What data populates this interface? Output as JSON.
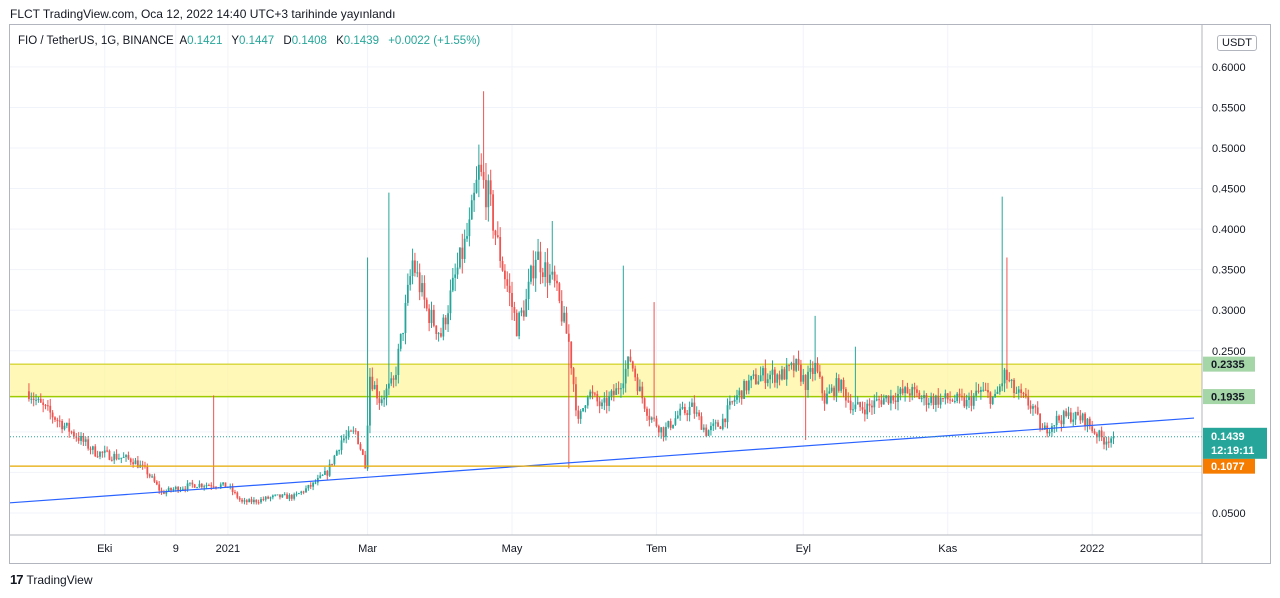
{
  "header": {
    "published": "FLCT TradingView.com, Oca 12, 2022 14:40 UTC+3 tarihinde yayınlandı"
  },
  "legend": {
    "symbol": "FIO / TetherUS, 1G, BINANCE",
    "open_label": "A",
    "open": "0.1421",
    "high_label": "Y",
    "high": "0.1447",
    "low_label": "D",
    "low": "0.1408",
    "close_label": "K",
    "close": "0.1439",
    "change": "+0.0022 (+1.55%)"
  },
  "unit_badge": "USDT",
  "footer": {
    "brand": "TradingView",
    "logo": "tradingview-logo-icon"
  },
  "colors": {
    "up": "#26a69a",
    "down": "#ef5350",
    "trendline": "#2962ff",
    "zone_fill": "#fff59d",
    "zone_line": "#c8c800",
    "support_line": "#e6a800",
    "price_badge": "#26a69a",
    "support_badge": "#f57c00",
    "zone_badge": "#a5d6a7"
  },
  "chart_data": {
    "type": "candlestick",
    "ylim": [
      0.02,
      0.65
    ],
    "yticks": [
      "0.6000",
      "0.5500",
      "0.5000",
      "0.4500",
      "0.4000",
      "0.3500",
      "0.3000",
      "0.2500",
      "0.0500"
    ],
    "xticks": [
      {
        "label": "Eki",
        "day": 40
      },
      {
        "label": "9",
        "day": 70
      },
      {
        "label": "2021",
        "day": 92
      },
      {
        "label": "Mar",
        "day": 151
      },
      {
        "label": "May",
        "day": 212
      },
      {
        "label": "Tem",
        "day": 273
      },
      {
        "label": "Eyl",
        "day": 335
      },
      {
        "label": "Kas",
        "day": 396
      },
      {
        "label": "2022",
        "day": 457
      }
    ],
    "x_range_days": [
      0,
      500
    ],
    "price_labels": {
      "last_price": "0.1439",
      "countdown": "12:19:11",
      "zone_top": "0.2335",
      "zone_bottom": "0.1935",
      "support": "0.1077"
    },
    "levels": {
      "zone_top": 0.2335,
      "zone_bottom": 0.1935,
      "support": 0.1077
    },
    "trendline": [
      {
        "day": 0,
        "price": 0.0625
      },
      {
        "day": 500,
        "price": 0.167
      }
    ],
    "keypoints": [
      {
        "day": 8,
        "price": 0.2
      },
      {
        "day": 12,
        "price": 0.185
      },
      {
        "day": 18,
        "price": 0.17
      },
      {
        "day": 24,
        "price": 0.155
      },
      {
        "day": 30,
        "price": 0.14
      },
      {
        "day": 36,
        "price": 0.125
      },
      {
        "day": 44,
        "price": 0.12
      },
      {
        "day": 52,
        "price": 0.115
      },
      {
        "day": 58,
        "price": 0.1
      },
      {
        "day": 64,
        "price": 0.075
      },
      {
        "day": 70,
        "price": 0.08
      },
      {
        "day": 78,
        "price": 0.085
      },
      {
        "day": 86,
        "price": 0.085
      },
      {
        "day": 92,
        "price": 0.083
      },
      {
        "day": 98,
        "price": 0.063
      },
      {
        "day": 104,
        "price": 0.065
      },
      {
        "day": 112,
        "price": 0.07
      },
      {
        "day": 120,
        "price": 0.07
      },
      {
        "day": 128,
        "price": 0.085
      },
      {
        "day": 134,
        "price": 0.1
      },
      {
        "day": 140,
        "price": 0.14
      },
      {
        "day": 146,
        "price": 0.15
      },
      {
        "day": 150,
        "price": 0.11
      },
      {
        "day": 152,
        "price": 0.22
      },
      {
        "day": 156,
        "price": 0.19
      },
      {
        "day": 162,
        "price": 0.21
      },
      {
        "day": 166,
        "price": 0.28
      },
      {
        "day": 170,
        "price": 0.36
      },
      {
        "day": 176,
        "price": 0.3
      },
      {
        "day": 182,
        "price": 0.27
      },
      {
        "day": 188,
        "price": 0.34
      },
      {
        "day": 194,
        "price": 0.4
      },
      {
        "day": 198,
        "price": 0.47
      },
      {
        "day": 202,
        "price": 0.44
      },
      {
        "day": 206,
        "price": 0.38
      },
      {
        "day": 210,
        "price": 0.33
      },
      {
        "day": 214,
        "price": 0.28
      },
      {
        "day": 218,
        "price": 0.31
      },
      {
        "day": 222,
        "price": 0.37
      },
      {
        "day": 226,
        "price": 0.35
      },
      {
        "day": 230,
        "price": 0.33
      },
      {
        "day": 236,
        "price": 0.26
      },
      {
        "day": 240,
        "price": 0.16
      },
      {
        "day": 244,
        "price": 0.2
      },
      {
        "day": 250,
        "price": 0.18
      },
      {
        "day": 256,
        "price": 0.2
      },
      {
        "day": 262,
        "price": 0.24
      },
      {
        "day": 266,
        "price": 0.2
      },
      {
        "day": 270,
        "price": 0.17
      },
      {
        "day": 276,
        "price": 0.15
      },
      {
        "day": 282,
        "price": 0.17
      },
      {
        "day": 288,
        "price": 0.18
      },
      {
        "day": 294,
        "price": 0.15
      },
      {
        "day": 300,
        "price": 0.16
      },
      {
        "day": 306,
        "price": 0.19
      },
      {
        "day": 312,
        "price": 0.21
      },
      {
        "day": 318,
        "price": 0.22
      },
      {
        "day": 326,
        "price": 0.22
      },
      {
        "day": 332,
        "price": 0.23
      },
      {
        "day": 336,
        "price": 0.21
      },
      {
        "day": 340,
        "price": 0.23
      },
      {
        "day": 344,
        "price": 0.19
      },
      {
        "day": 350,
        "price": 0.21
      },
      {
        "day": 356,
        "price": 0.18
      },
      {
        "day": 362,
        "price": 0.18
      },
      {
        "day": 368,
        "price": 0.19
      },
      {
        "day": 374,
        "price": 0.195
      },
      {
        "day": 380,
        "price": 0.2
      },
      {
        "day": 386,
        "price": 0.19
      },
      {
        "day": 392,
        "price": 0.19
      },
      {
        "day": 398,
        "price": 0.19
      },
      {
        "day": 404,
        "price": 0.185
      },
      {
        "day": 410,
        "price": 0.2
      },
      {
        "day": 416,
        "price": 0.19
      },
      {
        "day": 420,
        "price": 0.22
      },
      {
        "day": 424,
        "price": 0.2
      },
      {
        "day": 428,
        "price": 0.19
      },
      {
        "day": 432,
        "price": 0.18
      },
      {
        "day": 436,
        "price": 0.15
      },
      {
        "day": 442,
        "price": 0.165
      },
      {
        "day": 448,
        "price": 0.17
      },
      {
        "day": 454,
        "price": 0.165
      },
      {
        "day": 458,
        "price": 0.15
      },
      {
        "day": 462,
        "price": 0.14
      },
      {
        "day": 466,
        "price": 0.1439
      }
    ],
    "spikes": [
      {
        "day": 7,
        "high": 0.22
      },
      {
        "day": 86,
        "high": 0.195
      },
      {
        "day": 151,
        "high": 0.365
      },
      {
        "day": 160,
        "high": 0.445
      },
      {
        "day": 200,
        "high": 0.57
      },
      {
        "day": 229,
        "high": 0.41
      },
      {
        "day": 259,
        "high": 0.355
      },
      {
        "day": 272,
        "high": 0.31
      },
      {
        "day": 340,
        "high": 0.293
      },
      {
        "day": 357,
        "high": 0.255
      },
      {
        "day": 419,
        "high": 0.44
      },
      {
        "day": 421,
        "high": 0.365
      }
    ],
    "dips": [
      {
        "day": 150,
        "low": 0.105
      },
      {
        "day": 236,
        "low": 0.105
      },
      {
        "day": 336,
        "low": 0.14
      }
    ]
  }
}
